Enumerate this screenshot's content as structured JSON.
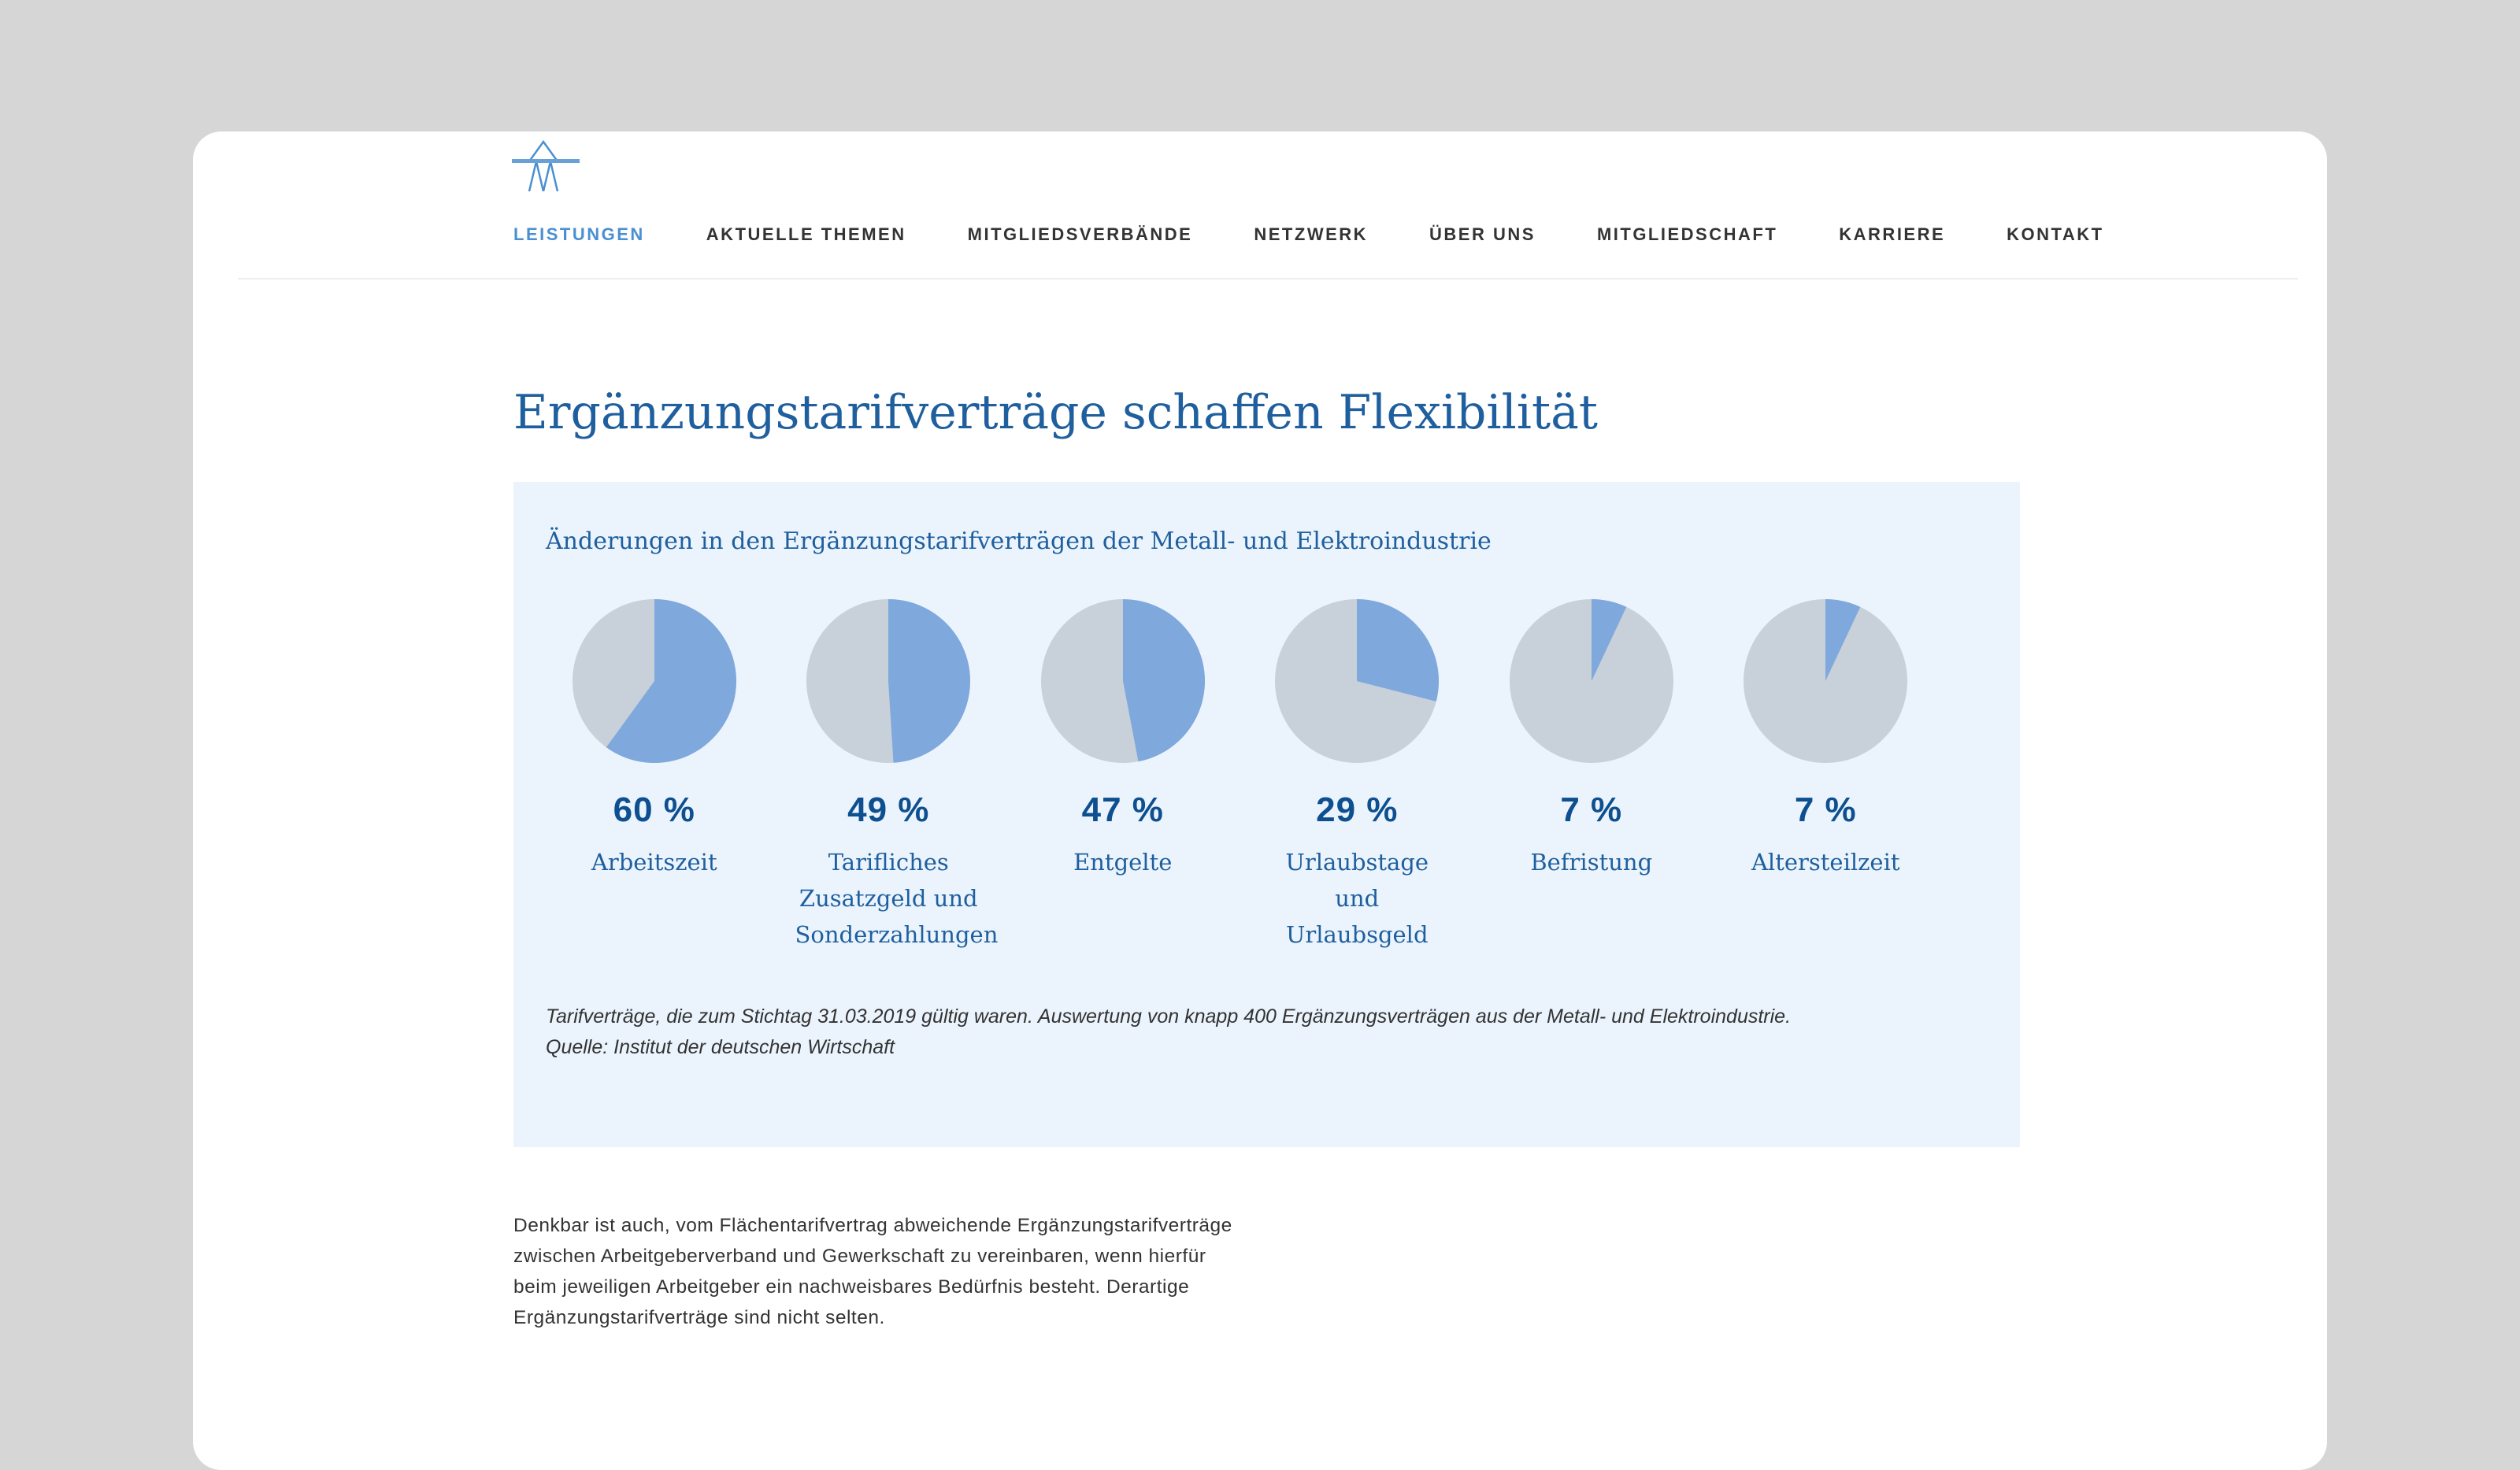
{
  "nav": {
    "items": [
      {
        "label": "LEISTUNGEN",
        "active": true
      },
      {
        "label": "AKTUELLE THEMEN"
      },
      {
        "label": "MITGLIEDSVERBÄNDE"
      },
      {
        "label": "NETZWERK"
      },
      {
        "label": "ÜBER UNS"
      },
      {
        "label": "MITGLIEDSCHAFT"
      },
      {
        "label": "KARRIERE"
      },
      {
        "label": "KONTAKT"
      }
    ]
  },
  "page": {
    "title": "Ergänzungstarifverträge schaffen Flexibilität"
  },
  "colors": {
    "accent": "#7fa8dc",
    "rest": "#c8d0d9",
    "bg": "#ebf4fd",
    "text": "#1f5f9e"
  },
  "chart_data": {
    "type": "pie",
    "title": "Änderungen in den Ergänzungstarifverträgen der Metall- und Elektroindustrie",
    "items": [
      {
        "value": 60,
        "pct_label": "60 %",
        "label": "Arbeitszeit"
      },
      {
        "value": 49,
        "pct_label": "49 %",
        "label": "Tarifliches Zusatzgeld und Sonderzahlungen"
      },
      {
        "value": 47,
        "pct_label": "47 %",
        "label": "Entgelte"
      },
      {
        "value": 29,
        "pct_label": "29 %",
        "label": "Urlaubstage und Urlaubsgeld"
      },
      {
        "value": 7,
        "pct_label": "7 %",
        "label": "Befristung"
      },
      {
        "value": 7,
        "pct_label": "7 %",
        "label": "Altersteilzeit"
      }
    ],
    "note": "Tarifverträge, die zum Stichtag 31.03.2019 gültig waren. Auswertung von knapp 400 Ergänzungsverträgen aus der Metall- und Elektroindustrie.",
    "source": "Quelle: Institut der deutschen Wirtschaft"
  },
  "body_text": "Denkbar ist auch, vom Flächentarifvertrag abweichende Ergänzungstarifverträge zwischen Arbeitgeberverband und Gewerkschaft zu vereinbaren, wenn hierfür beim jeweiligen Arbeitgeber ein nachweisbares Bedürfnis besteht. Derartige Ergänzungstarifverträge sind nicht selten."
}
